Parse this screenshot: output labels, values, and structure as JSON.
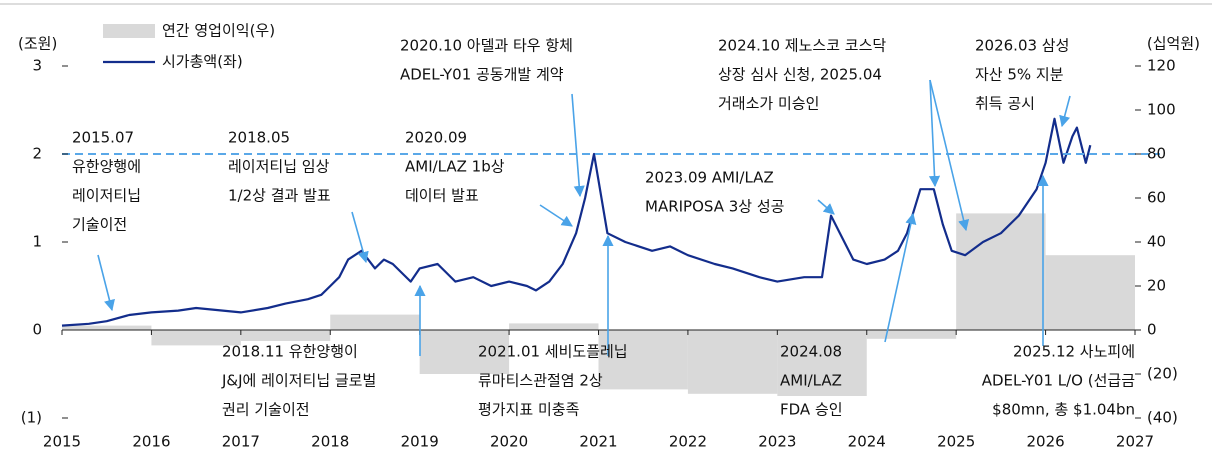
{
  "chart_data": {
    "type": "combo",
    "y_unit": "(조원)",
    "y2_unit": "(십억원)",
    "xlim": [
      2015,
      2027
    ],
    "xticks": [
      2015,
      2016,
      2017,
      2018,
      2019,
      2020,
      2021,
      2022,
      2023,
      2024,
      2025,
      2026,
      2027
    ],
    "ylim": [
      -1,
      3
    ],
    "yticks": [
      {
        "value": -1,
        "label": "(1)"
      },
      0,
      1,
      2,
      3
    ],
    "y2lim": [
      -40,
      120
    ],
    "y2ticks": [
      {
        "value": -40,
        "label": "(40)"
      },
      {
        "value": -20,
        "label": "(20)"
      },
      0,
      20,
      40,
      60,
      80,
      100,
      120
    ],
    "reference_line": {
      "value": 2,
      "color": "#5aa8e8"
    },
    "series": [
      {
        "name": "연간 영업이익(우)",
        "type": "bar",
        "axis": "y2",
        "color": "#d9d9d9",
        "x": [
          2015,
          2016,
          2017,
          2018,
          2019,
          2020,
          2021,
          2022,
          2023,
          2024,
          2025,
          2026
        ],
        "values": [
          2,
          -7,
          -5,
          7,
          -20,
          3,
          -27,
          -29,
          -30,
          -4,
          53,
          34
        ]
      },
      {
        "name": "시가총액(좌)",
        "type": "line",
        "color": "#132d8c",
        "x": [
          2015.0,
          2015.3,
          2015.5,
          2015.75,
          2016.0,
          2016.3,
          2016.5,
          2016.8,
          2017.0,
          2017.3,
          2017.5,
          2017.75,
          2017.9,
          2018.0,
          2018.1,
          2018.2,
          2018.35,
          2018.5,
          2018.6,
          2018.7,
          2018.9,
          2019.0,
          2019.2,
          2019.4,
          2019.6,
          2019.8,
          2020.0,
          2020.2,
          2020.3,
          2020.45,
          2020.6,
          2020.75,
          2020.85,
          2020.95,
          2021.0,
          2021.1,
          2021.3,
          2021.6,
          2021.8,
          2022.0,
          2022.3,
          2022.5,
          2022.8,
          2023.0,
          2023.3,
          2023.5,
          2023.6,
          2023.7,
          2023.85,
          2024.0,
          2024.2,
          2024.35,
          2024.45,
          2024.6,
          2024.75,
          2024.85,
          2024.95,
          2025.1,
          2025.3,
          2025.5,
          2025.7,
          2025.9,
          2026.0,
          2026.1,
          2026.2,
          2026.3,
          2026.35,
          2026.45,
          2026.5
        ],
        "values": [
          0.05,
          0.07,
          0.1,
          0.17,
          0.2,
          0.22,
          0.25,
          0.22,
          0.2,
          0.25,
          0.3,
          0.35,
          0.4,
          0.5,
          0.6,
          0.8,
          0.9,
          0.7,
          0.8,
          0.75,
          0.55,
          0.7,
          0.75,
          0.55,
          0.6,
          0.5,
          0.55,
          0.5,
          0.45,
          0.55,
          0.75,
          1.1,
          1.5,
          2.0,
          1.7,
          1.1,
          1.0,
          0.9,
          0.95,
          0.85,
          0.75,
          0.7,
          0.6,
          0.55,
          0.6,
          0.6,
          1.3,
          1.1,
          0.8,
          0.75,
          0.8,
          0.9,
          1.1,
          1.6,
          1.6,
          1.2,
          0.9,
          0.85,
          1.0,
          1.1,
          1.3,
          1.6,
          1.9,
          2.4,
          1.9,
          2.2,
          2.3,
          1.9,
          2.1
        ]
      }
    ],
    "annotations": [
      [
        "2015.07",
        "유한양행에",
        "레이저티닙",
        "기술이전"
      ],
      [
        "2018.05",
        "레이저티닙 임상",
        "1/2상 결과 발표"
      ],
      [
        "2020.09",
        "AMI/LAZ 1b상",
        "데이터 발표"
      ],
      [
        "2020.10 아델과 타우 항체",
        "ADEL-Y01 공동개발 계약"
      ],
      [
        "2024.10 제노스코 코스닥",
        "상장 심사 신청, 2025.04",
        "거래소가 미승인"
      ],
      [
        "2026.03 삼성",
        "자산 5% 지분",
        "취득 공시"
      ],
      [
        "2023.09 AMI/LAZ",
        "MARIPOSA 3상 성공"
      ],
      [
        "2018.11 유한양행이",
        "J&J에 레이저티닙 글로벌",
        "권리 기술이전"
      ],
      [
        "2021.01 세비도플레닙",
        "류마티스관절염 2상",
        "평가지표 미충족"
      ],
      [
        "2024.08",
        "AMI/LAZ",
        "FDA 승인"
      ],
      [
        "2025.12 사노피에",
        "ADEL-Y01 L/O (선급금",
        "$80mn, 총 $1.04bn"
      ]
    ]
  }
}
